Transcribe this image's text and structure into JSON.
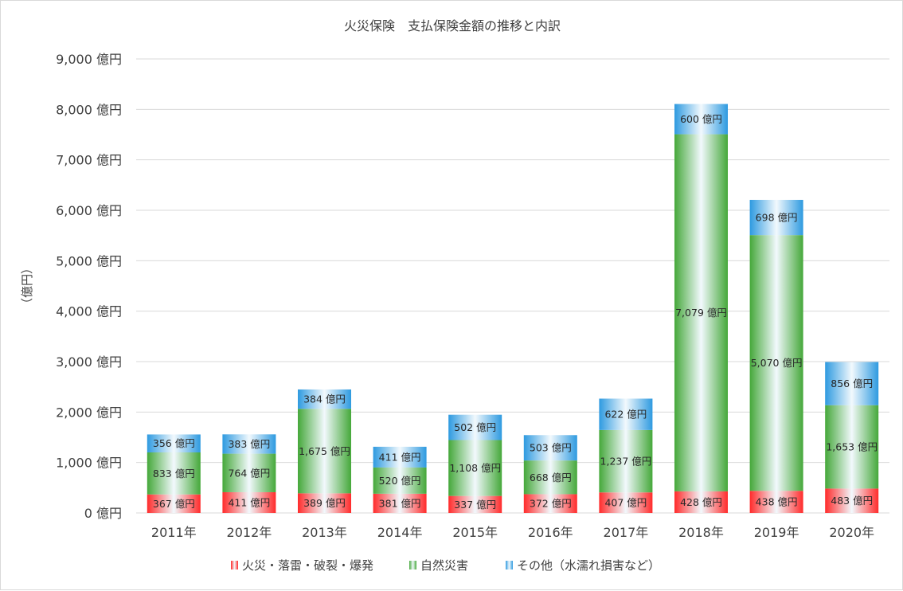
{
  "chart_data": {
    "type": "bar",
    "stacked": true,
    "title": "火災保険　支払保険金額の推移と内訳",
    "ylabel": "（億円）",
    "unit": "億円",
    "categories": [
      "2011年",
      "2012年",
      "2013年",
      "2014年",
      "2015年",
      "2016年",
      "2017年",
      "2018年",
      "2019年",
      "2020年"
    ],
    "series": [
      {
        "name": "火災・落雷・破裂・爆発",
        "color": "#ff2b2b",
        "values": [
          367,
          411,
          389,
          381,
          337,
          372,
          407,
          428,
          438,
          483
        ]
      },
      {
        "name": "自然災害",
        "color": "#45a83a",
        "values": [
          833,
          764,
          1675,
          520,
          1108,
          668,
          1237,
          7079,
          5070,
          1653
        ]
      },
      {
        "name": "その他（水濡れ損害など）",
        "color": "#2e9ae0",
        "values": [
          356,
          383,
          384,
          411,
          502,
          503,
          622,
          600,
          698,
          856
        ]
      }
    ],
    "ylim": [
      0,
      9000
    ],
    "yticks": [
      0,
      1000,
      2000,
      3000,
      4000,
      5000,
      6000,
      7000,
      8000,
      9000
    ],
    "grid": true,
    "legend_position": "bottom"
  }
}
